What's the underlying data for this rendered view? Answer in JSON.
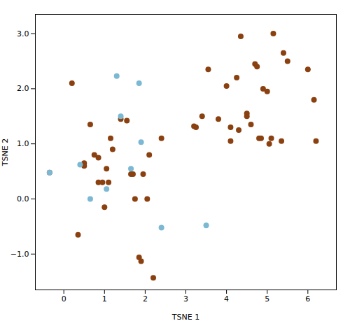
{
  "chart_data": {
    "type": "scatter",
    "xlabel": "TSNE 1",
    "ylabel": "TSNE 2",
    "xlim": [
      -0.7,
      6.7
    ],
    "ylim": [
      -1.65,
      3.35
    ],
    "xticks": [
      0,
      1,
      2,
      3,
      4,
      5,
      6
    ],
    "yticks": [
      -1,
      0,
      1,
      2,
      3
    ],
    "grid": false,
    "series": [
      {
        "color": "#8B4010",
        "values": [
          [
            -0.35,
            0.48
          ],
          [
            0.2,
            2.1
          ],
          [
            0.35,
            -0.65
          ],
          [
            0.5,
            0.65
          ],
          [
            0.5,
            0.6
          ],
          [
            0.65,
            1.35
          ],
          [
            0.75,
            0.8
          ],
          [
            0.85,
            0.75
          ],
          [
            0.85,
            0.3
          ],
          [
            0.95,
            0.3
          ],
          [
            1.0,
            -0.15
          ],
          [
            1.05,
            0.55
          ],
          [
            1.1,
            0.3
          ],
          [
            1.15,
            1.1
          ],
          [
            1.2,
            0.9
          ],
          [
            1.4,
            1.45
          ],
          [
            1.55,
            1.42
          ],
          [
            1.65,
            0.45
          ],
          [
            1.7,
            0.45
          ],
          [
            1.75,
            0.0
          ],
          [
            1.85,
            -1.06
          ],
          [
            1.9,
            -1.13
          ],
          [
            1.95,
            0.45
          ],
          [
            2.05,
            0.0
          ],
          [
            2.1,
            0.8
          ],
          [
            2.2,
            -1.43
          ],
          [
            2.4,
            1.1
          ],
          [
            3.2,
            1.32
          ],
          [
            3.25,
            1.3
          ],
          [
            3.4,
            1.5
          ],
          [
            3.55,
            2.35
          ],
          [
            3.8,
            1.45
          ],
          [
            4.0,
            2.05
          ],
          [
            4.1,
            1.3
          ],
          [
            4.1,
            1.05
          ],
          [
            4.25,
            2.2
          ],
          [
            4.3,
            1.25
          ],
          [
            4.35,
            2.95
          ],
          [
            4.5,
            1.55
          ],
          [
            4.5,
            1.5
          ],
          [
            4.6,
            1.35
          ],
          [
            4.7,
            2.45
          ],
          [
            4.75,
            2.4
          ],
          [
            4.8,
            1.1
          ],
          [
            4.85,
            1.1
          ],
          [
            4.9,
            2.0
          ],
          [
            5.0,
            1.95
          ],
          [
            5.05,
            1.0
          ],
          [
            5.1,
            1.1
          ],
          [
            5.15,
            3.0
          ],
          [
            5.35,
            1.05
          ],
          [
            5.4,
            2.65
          ],
          [
            5.5,
            2.5
          ],
          [
            6.0,
            2.35
          ],
          [
            6.15,
            1.8
          ],
          [
            6.2,
            1.05
          ]
        ]
      },
      {
        "color": "#7ab8d4",
        "values": [
          [
            -0.35,
            0.48
          ],
          [
            0.4,
            0.62
          ],
          [
            0.65,
            0.0
          ],
          [
            1.05,
            0.18
          ],
          [
            1.3,
            2.23
          ],
          [
            1.4,
            1.5
          ],
          [
            1.65,
            0.55
          ],
          [
            1.85,
            2.1
          ],
          [
            1.9,
            1.03
          ],
          [
            2.4,
            -0.52
          ],
          [
            3.5,
            -0.48
          ]
        ]
      }
    ]
  }
}
